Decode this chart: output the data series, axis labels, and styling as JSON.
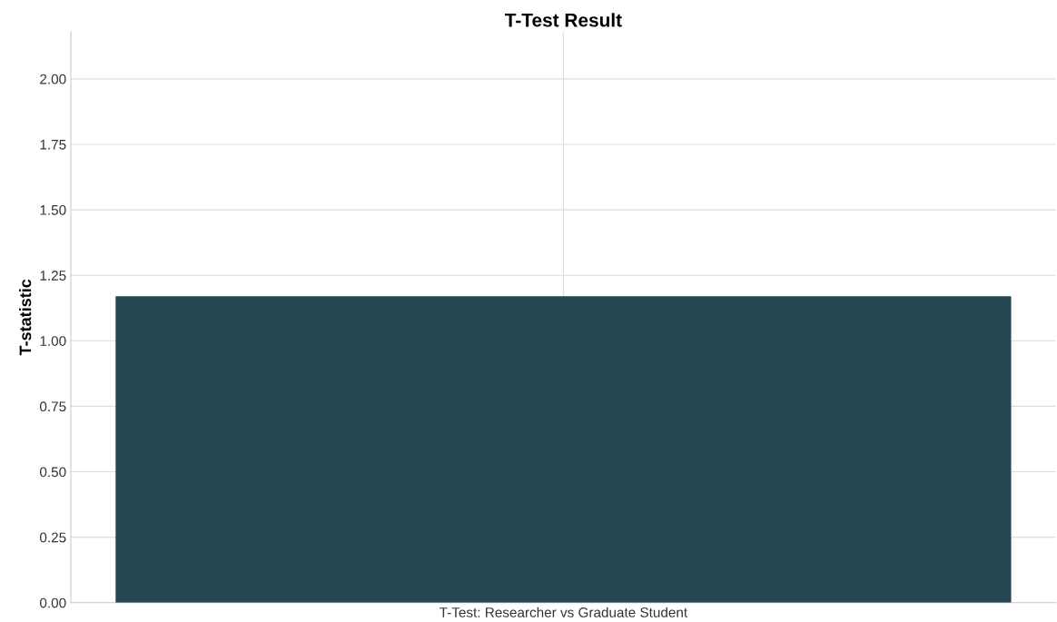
{
  "chart_data": {
    "type": "bar",
    "title": "T-Test Result",
    "ylabel": "T-statistic",
    "categories": [
      "T-Test: Researcher vs Graduate Student"
    ],
    "values": [
      1.17
    ],
    "color": "#264653",
    "ylim": [
      0,
      2.18
    ],
    "yticks": [
      {
        "value": 0,
        "label": "0.00"
      },
      {
        "value": 0.25,
        "label": "0.25"
      },
      {
        "value": 0.5,
        "label": "0.50"
      },
      {
        "value": 0.75,
        "label": "0.75"
      },
      {
        "value": 1,
        "label": "1.00"
      },
      {
        "value": 1.25,
        "label": "1.25"
      },
      {
        "value": 1.5,
        "label": "1.50"
      },
      {
        "value": 1.75,
        "label": "1.75"
      },
      {
        "value": 2,
        "label": "2.00"
      }
    ],
    "grid": true
  }
}
